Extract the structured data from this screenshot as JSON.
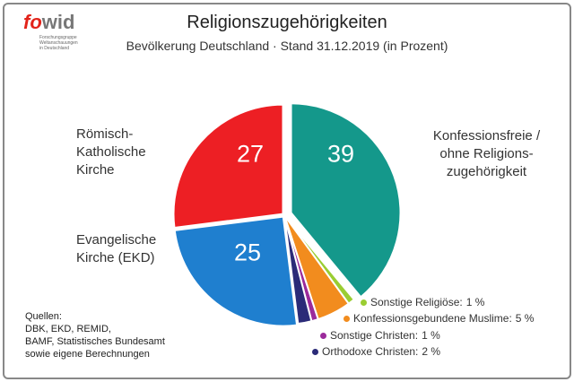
{
  "logo": {
    "parts": [
      "fo",
      "wid"
    ],
    "subtext": "Forschungsgruppe\nWeltanschauungen\nin Deutschland"
  },
  "source": "Quellen:\nDBK, EKD, REMID,\nBAMF, Statistisches Bundesamt\nsowie eigene Berechnungen",
  "chart_data": {
    "type": "pie",
    "title": "Religionszugehörigkeiten",
    "subtitle": "Bevölkerung Deutschland · Stand 31.12.2019 (in Prozent)",
    "categories": [
      "Konfessionsfreie /\nohne Religions-\nzugehörigkeit",
      "Sonstige Religiöse:",
      "Konfessionsgebundene Muslime:",
      "Sonstige Christen:",
      "Orthodoxe Christen:",
      "Evangelische\nKirche (EKD)",
      "Römisch-\nKatholische\nKirche"
    ],
    "values": [
      39,
      1,
      5,
      1,
      2,
      25,
      27
    ],
    "value_labels": [
      "39",
      "1 %",
      "5 %",
      "1 %",
      "2 %",
      "25",
      "27"
    ],
    "colors": [
      "#14988b",
      "#9acd32",
      "#f28c1e",
      "#9b2a9b",
      "#2b2b78",
      "#1f7fcf",
      "#ed1f24"
    ]
  }
}
